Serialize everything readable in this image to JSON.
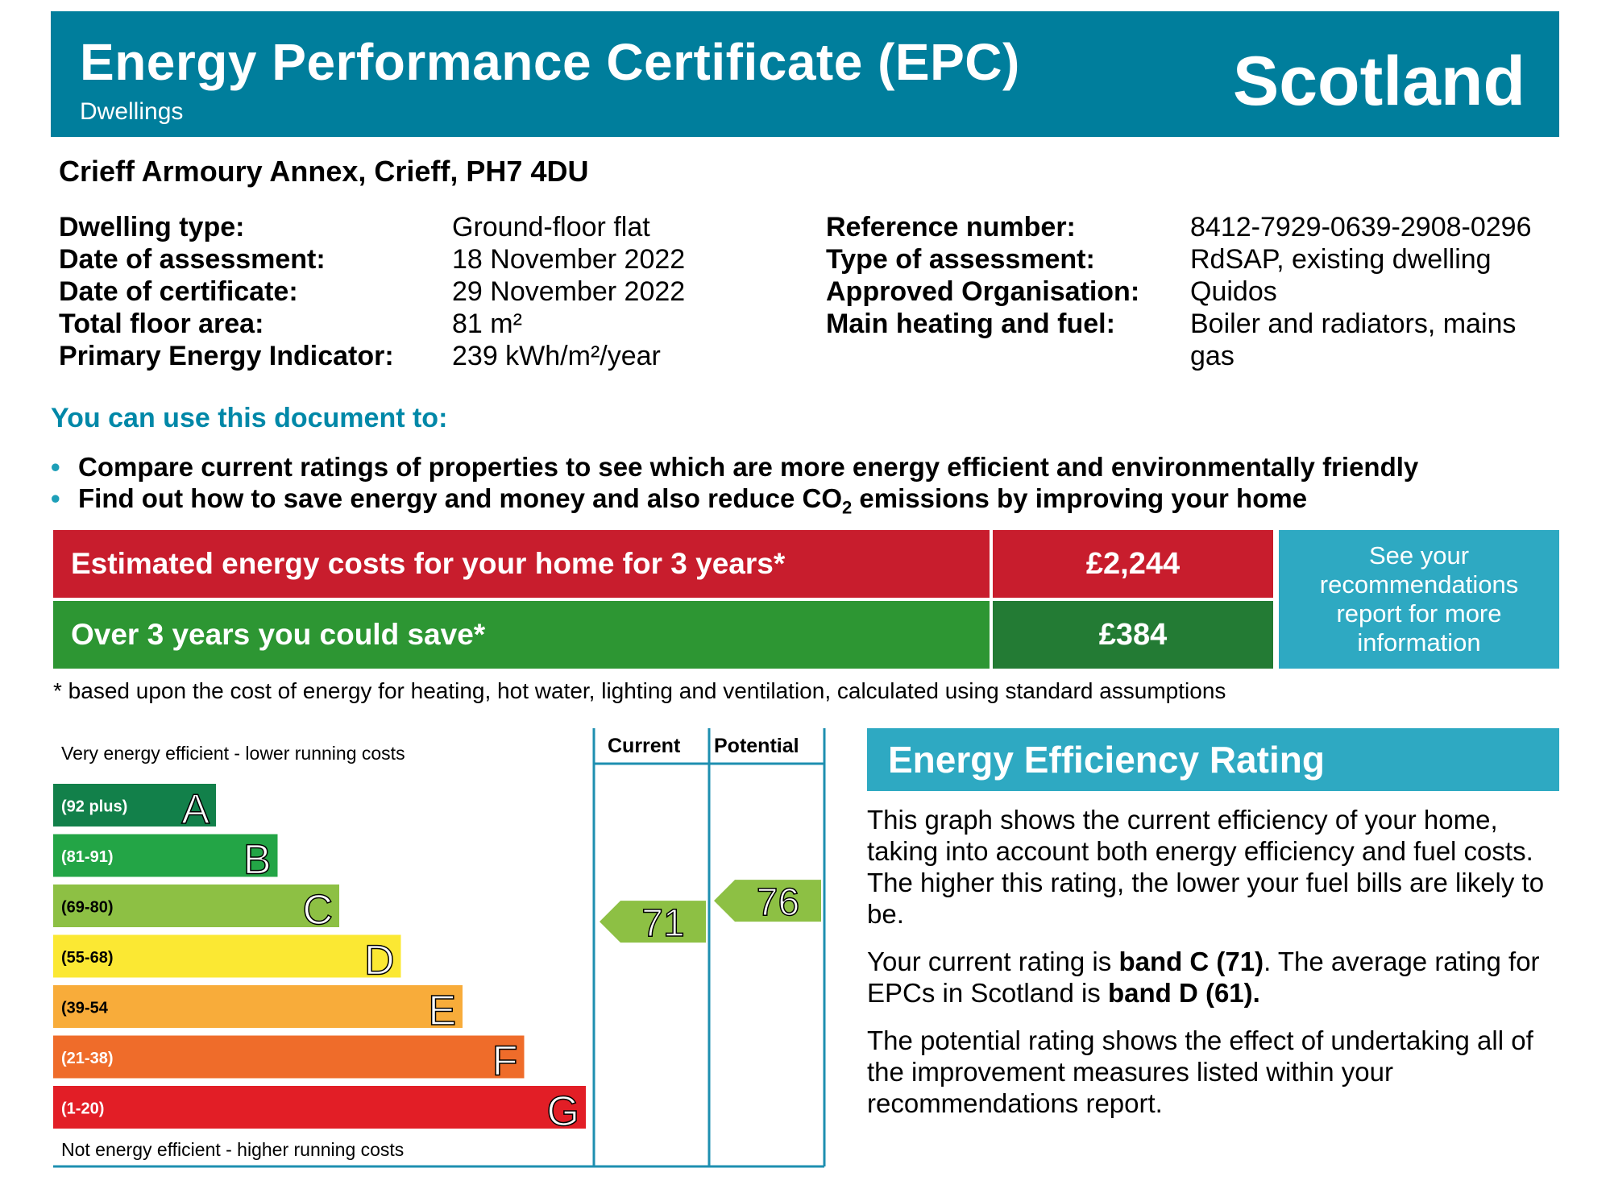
{
  "header": {
    "title": "Energy Performance Certificate (EPC)",
    "subtitle": "Dwellings",
    "country": "Scotland"
  },
  "address": "Crieff Armoury Annex, Crieff, PH7 4DU",
  "details_left": [
    {
      "label": "Dwelling type:",
      "value": "Ground-floor flat"
    },
    {
      "label": "Date of assessment:",
      "value": "18 November 2022"
    },
    {
      "label": "Date of certificate:",
      "value": "29 November 2022"
    },
    {
      "label": "Total floor area:",
      "value": "81 m²"
    },
    {
      "label": "Primary Energy Indicator:",
      "value": "239 kWh/m²/year"
    }
  ],
  "details_right": [
    {
      "label": "Reference number:",
      "value": "8412-7929-0639-2908-0296"
    },
    {
      "label": "Type of assessment:",
      "value": "RdSAP, existing dwelling"
    },
    {
      "label": "Approved Organisation:",
      "value": "Quidos"
    },
    {
      "label": "Main heating and fuel:",
      "value": "Boiler and radiators, mains gas"
    }
  ],
  "use": {
    "heading": "You can use this document to:",
    "bullet1": "Compare current ratings of properties to see which are more energy efficient and environmentally friendly",
    "bullet2_pre": "Find out how to save energy and money and also reduce CO",
    "bullet2_sub": "2",
    "bullet2_post": " emissions by improving your home"
  },
  "costs": {
    "estimated_label": "Estimated energy costs for your home for 3 years*",
    "estimated_value": "£2,244",
    "save_label": "Over 3 years you could save*",
    "save_value": "£384",
    "recommendations": "See your recommendations report for more information",
    "footnote": "* based upon the cost of energy for heating, hot water, lighting and ventilation, calculated using standard assumptions"
  },
  "chart_data": {
    "type": "table",
    "title": "Energy Efficiency Rating",
    "top_label": "Very energy efficient - lower running costs",
    "bottom_label": "Not energy efficient - higher running costs",
    "columns": [
      "Current",
      "Potential"
    ],
    "bands": [
      {
        "letter": "A",
        "range": "(92 plus)",
        "color": "#12804a"
      },
      {
        "letter": "B",
        "range": "(81-91)",
        "color": "#23a546"
      },
      {
        "letter": "C",
        "range": "(69-80)",
        "color": "#8dc044"
      },
      {
        "letter": "D",
        "range": "(55-68)",
        "color": "#fbe833"
      },
      {
        "letter": "E",
        "range": "(39-54",
        "color": "#f8ac3a"
      },
      {
        "letter": "F",
        "range": "(21-38)",
        "color": "#ef6c2a"
      },
      {
        "letter": "G",
        "range": "(1-20)",
        "color": "#e21e26"
      }
    ],
    "current": {
      "value": 71,
      "band": "C",
      "color": "#8dc044"
    },
    "potential": {
      "value": 76,
      "band": "C",
      "color": "#8dc044"
    }
  },
  "rating_text": {
    "heading": "Energy Efficiency Rating",
    "p1": "This graph shows the current efficiency of your home, taking into account both energy efficiency and fuel costs. The higher this rating, the lower your fuel bills are likely to be.",
    "p2_a": "Your current rating is ",
    "p2_b": "band C (71)",
    "p2_c": ". The average rating for EPCs in Scotland is ",
    "p2_d": "band D (61).",
    "p3": "The potential rating shows the effect of undertaking all of the improvement measures listed within your recommendations report."
  }
}
